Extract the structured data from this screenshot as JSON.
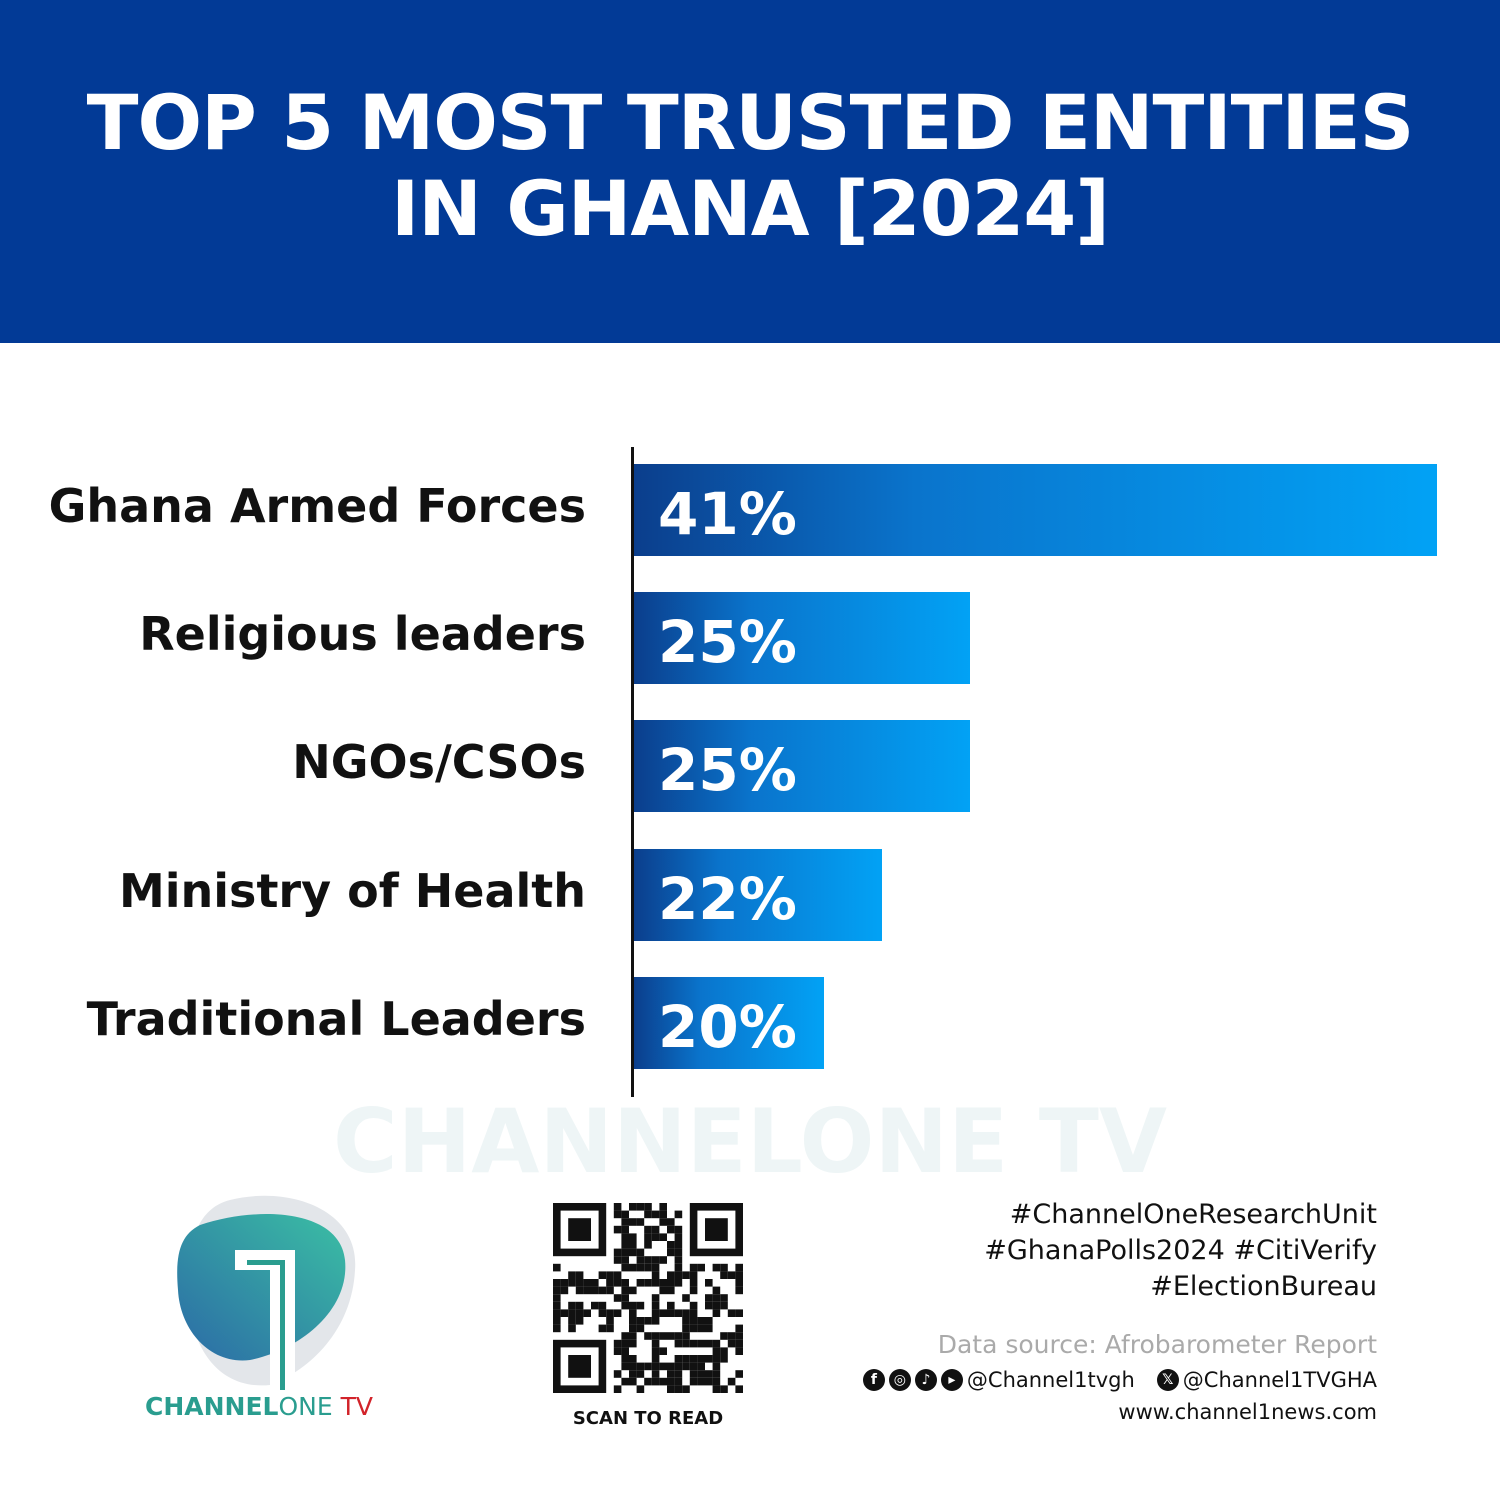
{
  "title": "TOP 5 MOST TRUSTED ENTITIES\nIN GHANA [2024]",
  "chart_data": {
    "type": "bar",
    "orientation": "horizontal",
    "title": "TOP 5 MOST TRUSTED ENTITIES IN GHANA [2024]",
    "categories": [
      "Ghana Armed Forces",
      "Religious leaders",
      "NGOs/CSOs",
      "Ministry of Health",
      "Traditional Leaders"
    ],
    "values": [
      41,
      25,
      25,
      22,
      20
    ],
    "value_labels": [
      "41%",
      "25%",
      "25%",
      "22%",
      "20%"
    ],
    "unit": "%",
    "grid": false,
    "colors": {
      "bar_start": "#0b3e8c",
      "bar_end": "#02a2f5"
    }
  },
  "watermark": "CHANNELONE TV",
  "logo": {
    "bold": "CHANNEL",
    "light": "ONE",
    "tv": " TV"
  },
  "qr": {
    "caption": "SCAN TO READ"
  },
  "footer": {
    "tags": [
      "#ChannelOneResearchUnit",
      "#GhanaPolls2024 #CitiVerify",
      "#ElectionBureau"
    ],
    "source": "Data source: Afrobarometer Report",
    "social_handle": "@Channel1tvgh",
    "x_handle": "@Channel1TVGHA",
    "website": "www.channel1news.com",
    "icons": [
      "facebook-icon",
      "instagram-icon",
      "tiktok-icon",
      "youtube-icon",
      "x-icon"
    ]
  },
  "colors": {
    "header": "#023a96",
    "brand_teal": "#2a9d8f",
    "brand_red": "#d2232a"
  }
}
